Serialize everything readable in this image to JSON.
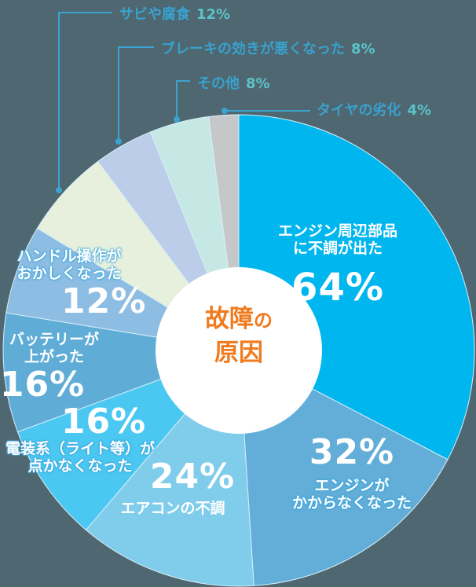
{
  "chart_data": {
    "type": "pie",
    "title": "故障の原因",
    "note": "Slice angles proportional to values (multi-answer survey, total 196%)",
    "categories": [
      "エンジン周辺部品に不調が出た",
      "エンジンがかからなくなった",
      "エアコンの不調",
      "電装系（ライト等）が点かなくなった",
      "バッテリーが上がった",
      "ハンドル操作がおかしくなった",
      "サビや腐食",
      "ブレーキの効きが悪くなった",
      "その他",
      "タイヤの劣化"
    ],
    "values": [
      64,
      32,
      24,
      16,
      16,
      12,
      12,
      8,
      8,
      4
    ],
    "unit": "%",
    "colors": [
      "#00b6ee",
      "#62aed8",
      "#7fcceb",
      "#4bc8f1",
      "#5fadd7",
      "#8dbde3",
      "#e6f0dc",
      "#bccde9",
      "#c5e8e5",
      "#c6c7c9"
    ],
    "start_angle_deg": 0,
    "direction": "clockwise"
  },
  "center": {
    "line1_a": "故障",
    "line1_b": "の",
    "line2": "原因"
  },
  "labels": {
    "engine_parts": {
      "name1": "エンジン周辺部品",
      "name2": "に不調が出た",
      "pct": "64%"
    },
    "engine_start": {
      "name1": "エンジンが",
      "name2": "かからなくなった",
      "pct": "32%"
    },
    "aircon": {
      "name1": "エアコンの不調",
      "pct": "24%"
    },
    "electrical": {
      "name1": "電装系（ライト等）が",
      "name2": "点かなくなった",
      "pct": "16%"
    },
    "battery": {
      "name1": "バッテリーが",
      "name2": "上がった",
      "pct": "16%"
    },
    "steering": {
      "name1": "ハンドル操作が",
      "name2": "おかしくなった",
      "pct": "12%"
    }
  },
  "callouts": [
    {
      "name": "サビや腐食",
      "pct": "12%"
    },
    {
      "name": "ブレーキの効きが悪くなった",
      "pct": "8%"
    },
    {
      "name": "その他",
      "pct": "8%"
    },
    {
      "name": "タイヤの劣化",
      "pct": "4%"
    }
  ],
  "colors": {
    "background": "#4e6770",
    "callout_line": "#3aa3d0",
    "callout_text": "#39a2cf",
    "callout_pct": "#5cc3c9",
    "center_text": "#f07a1e"
  }
}
